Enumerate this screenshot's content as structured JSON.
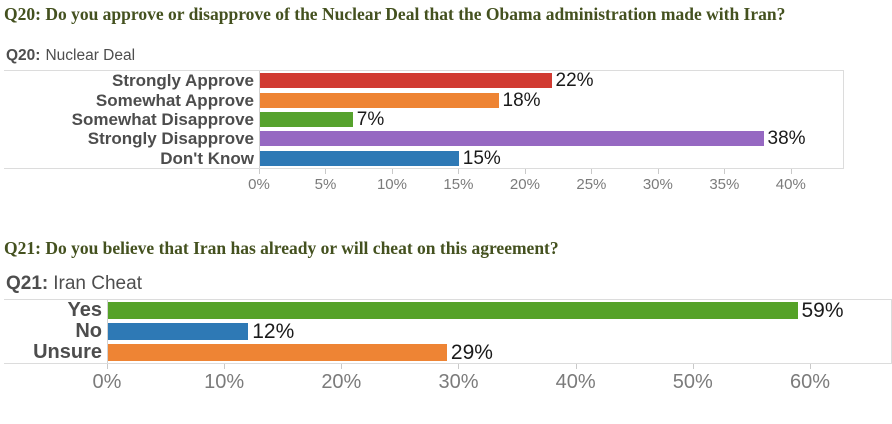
{
  "page": {
    "q20_heading": "Q20: Do you approve or disapprove of the Nuclear Deal that the Obama administration made with Iran?",
    "q21_heading": "Q21: Do you believe that Iran has already or will cheat on this agreement?"
  },
  "theme": {
    "heading_color": "#44511f",
    "chart_title_color": "#4e4e4e",
    "category_label_color": "#4d4d4d",
    "value_label_color": "#1a1a1a",
    "tick_label_color": "#7b7b7b",
    "plot_border_color": "#dcdcdc",
    "background": "#ffffff"
  },
  "chart_data": [
    {
      "type": "bar",
      "orientation": "horizontal",
      "title_prefix": "Q20:",
      "title": "Nuclear Deal",
      "categories": [
        "Strongly Approve",
        "Somewhat Approve",
        "Somewhat Disapprove",
        "Strongly Disapprove",
        "Don't Know"
      ],
      "values": [
        22,
        18,
        7,
        38,
        15
      ],
      "value_labels": [
        "22%",
        "18%",
        "7%",
        "38%",
        "15%"
      ],
      "colors": [
        "#d13b32",
        "#ee8434",
        "#56a22d",
        "#9668c2",
        "#2e79b5"
      ],
      "xticks": [
        0,
        5,
        10,
        15,
        20,
        25,
        30,
        35,
        40
      ],
      "tick_labels": [
        "0%",
        "5%",
        "10%",
        "15%",
        "20%",
        "25%",
        "30%",
        "35%",
        "40%"
      ],
      "xlim": [
        0,
        44
      ],
      "xlabel": "",
      "ylabel": "",
      "grid": false,
      "legend": false
    },
    {
      "type": "bar",
      "orientation": "horizontal",
      "title_prefix": "Q21:",
      "title": "Iran Cheat",
      "categories": [
        "Yes",
        "No",
        "Unsure"
      ],
      "values": [
        59,
        12,
        29
      ],
      "value_labels": [
        "59%",
        "12%",
        "29%"
      ],
      "colors": [
        "#55a228",
        "#2e79b5",
        "#ee8434"
      ],
      "xticks": [
        0,
        10,
        20,
        30,
        40,
        50,
        60
      ],
      "tick_labels": [
        "0%",
        "10%",
        "20%",
        "30%",
        "40%",
        "50%",
        "60%"
      ],
      "xlim": [
        0,
        67
      ],
      "xlabel": "",
      "ylabel": "",
      "grid": false,
      "legend": false
    }
  ]
}
